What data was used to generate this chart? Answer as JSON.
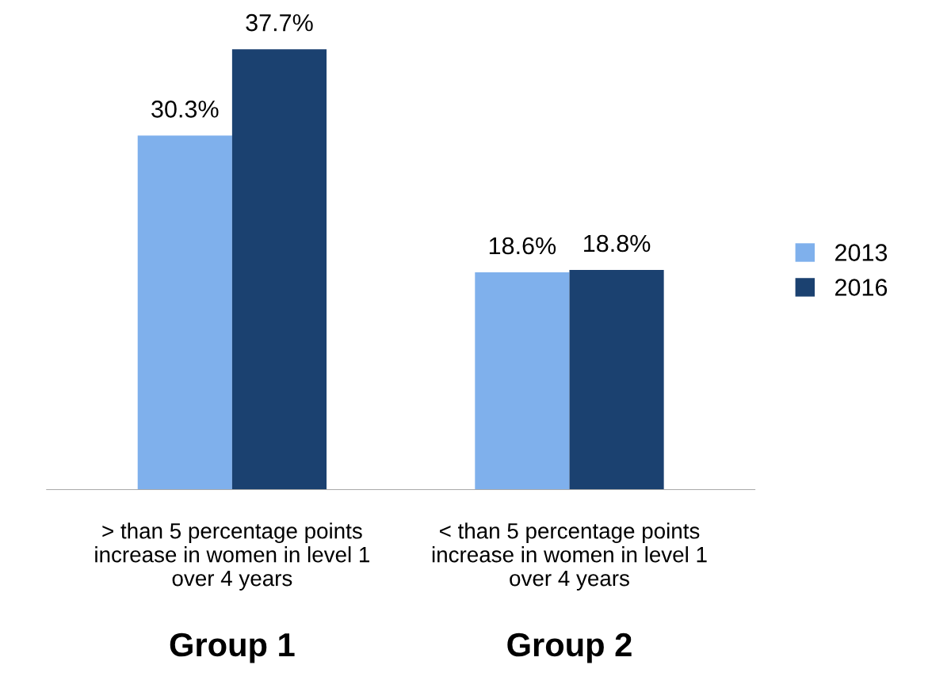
{
  "chart_data": {
    "type": "bar",
    "categories": [
      "> than 5 percentage points\nincrease in women in level 1\nover 4 years",
      "< than 5 percentage points\nincrease in women in level 1\nover 4 years"
    ],
    "series": [
      {
        "name": "2013",
        "color": "#7fb0ec",
        "values": [
          30.3,
          18.6
        ],
        "value_labels": [
          "30.3%",
          "18.6%"
        ]
      },
      {
        "name": "2016",
        "color": "#1b4170",
        "values": [
          37.7,
          18.8
        ],
        "value_labels": [
          "37.7%",
          "18.8%"
        ]
      }
    ],
    "annotations": [
      "Group 1",
      "Group 2"
    ],
    "legend": "right",
    "grid": false,
    "tick_labels": "x"
  }
}
